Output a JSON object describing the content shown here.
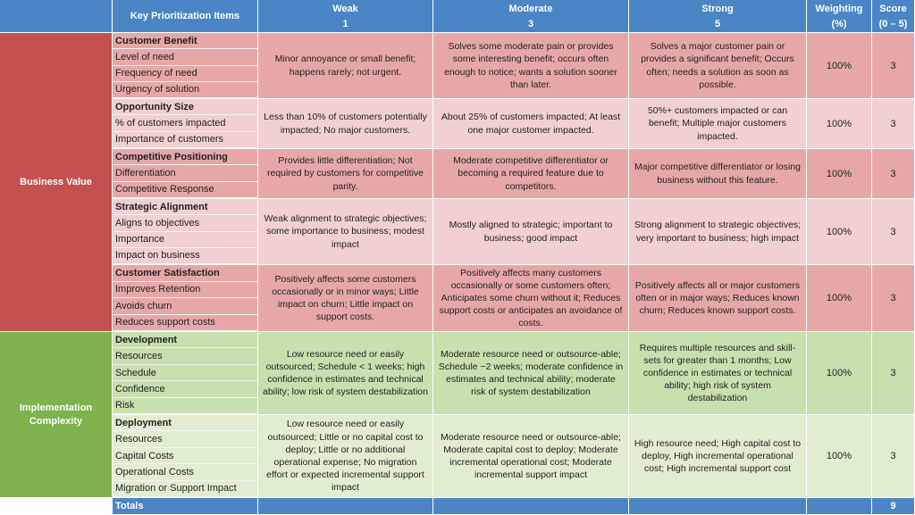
{
  "header": {
    "items_label": "Key Prioritization Items",
    "weak_label": "Weak",
    "weak_score": "1",
    "moderate_label": "Moderate",
    "moderate_score": "3",
    "strong_label": "Strong",
    "strong_score": "5",
    "weighting_label": "Weighting",
    "weighting_unit": "(%)",
    "score_label": "Score",
    "score_range": "(0 – 5)"
  },
  "groups": {
    "business_value": "Business Value",
    "implementation_complexity": "Implementation Complexity"
  },
  "rows": [
    {
      "items": [
        "Customer Benefit",
        "Level of need",
        "Frequency of need",
        "Urgency of solution"
      ],
      "weak": "Minor annoyance or small benefit; happens rarely; not urgent.",
      "moderate": "Solves some moderate pain or provides some interesting benefit; occurs often enough to notice; wants a solution sooner than later.",
      "strong": "Solves a major customer pain or provides a significant benefit; Occurs often; needs a solution as soon as possible.",
      "weighting": "100%",
      "score": "3"
    },
    {
      "items": [
        "Opportunity Size",
        "% of customers impacted",
        "Importance of customers"
      ],
      "weak": "Less than 10% of customers potentially impacted; No major customers.",
      "moderate": "About 25% of customers impacted; At least one major customer impacted.",
      "strong": "50%+ customers impacted or can benefit; Multiple major customers impacted.",
      "weighting": "100%",
      "score": "3"
    },
    {
      "items": [
        "Competitive Positioning",
        "Differentiation",
        "Competitive Response"
      ],
      "weak": "Provides little differentiation; Not required by customers for competitive parity.",
      "moderate": "Moderate competitive differentiator or becoming a required feature due to competitors.",
      "strong": "Major competitive differentiator or losing business without this feature.",
      "weighting": "100%",
      "score": "3"
    },
    {
      "items": [
        "Strategic Alignment",
        "Aligns to objectives",
        "Importance",
        "Impact on business"
      ],
      "weak": "Weak alignment to strategic objectives; some importance to business; modest impact",
      "moderate": "Mostly aligned to strategic; important to business; good impact",
      "strong": "Strong alignment to strategic objectives; very important to business; high impact",
      "weighting": "100%",
      "score": "3"
    },
    {
      "items": [
        "Customer Satisfaction",
        "Improves Retention",
        "Avoids churn",
        "Reduces support costs"
      ],
      "weak": "Positively affects some customers occasionally or in minor ways; Little impact on churn; Little impact on support costs.",
      "moderate": "Positively affects many customers occasionally or some customers often; Anticipates some churn without it; Reduces support costs or anticipates an avoidance of costs.",
      "strong": "Positively affects all or major customers often or in major ways; Reduces known churn; Reduces known support costs.",
      "weighting": "100%",
      "score": "3"
    },
    {
      "items": [
        "Development",
        "Resources",
        "Schedule",
        "Confidence",
        "Risk"
      ],
      "weak": "Low resource need or easily outsourced; Schedule < 1 weeks; high confidence in estimates and technical ability; low risk of system destabilization",
      "moderate": "Moderate resource need or outsource-able; Schedule ~2 weeks; moderate confidence in estimates and technical ability; moderate risk of system destabilization",
      "strong": "Requires multiple resources and skill-sets for greater than 1 months; Low confidence in estimates or technical ability; high risk of system destabilization",
      "weighting": "100%",
      "score": "3"
    },
    {
      "items": [
        "Deployment",
        "Resources",
        "Capital Costs",
        "Operational Costs",
        "Migration or Support Impact"
      ],
      "weak": "Low resource need or easily outsourced; Little or no capital cost to deploy; Little or no additional operational expense; No migration effort or expected incremental support impact",
      "moderate": "Moderate resource need or outsource-able; Moderate capital cost to deploy; Moderate incremental operational cost; Moderate incremental support impact",
      "strong": "High resource need; High capital cost to deploy, High incremental operational cost; High incremental support cost",
      "weighting": "100%",
      "score": "3"
    }
  ],
  "totals": {
    "label": "Totals",
    "score": "9"
  },
  "colors": {
    "header_blue": "#4a86c5",
    "business_value_red": "#c45050",
    "implementation_green": "#7db24e",
    "row_red_dark": "#e7a7a8",
    "row_red_light": "#f2cfd0",
    "row_green_dark": "#c8dfae",
    "row_green_light": "#e1edd0"
  }
}
